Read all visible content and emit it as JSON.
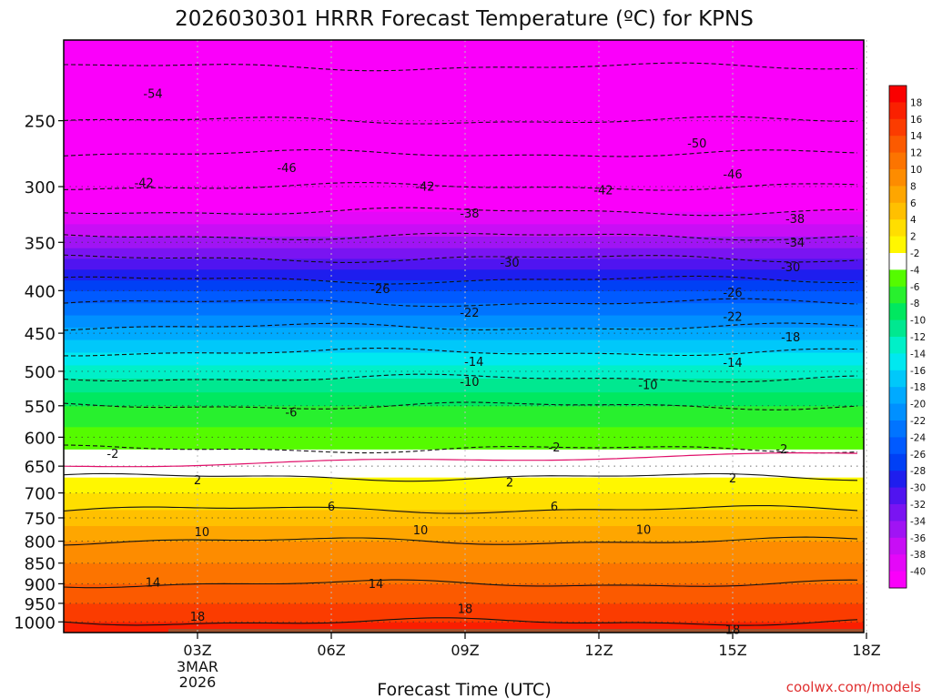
{
  "chart_data": {
    "type": "heatmap",
    "title": "2026030301 HRRR Forecast Temperature (ºC) for KPNS",
    "xlabel": "Forecast Time (UTC)",
    "ylabel": "",
    "credit": "coolwx.com/models",
    "x_range_hours": [
      0,
      18
    ],
    "x_ticks": [
      {
        "hour": 3,
        "label": "03Z",
        "date_lines": [
          "3MAR",
          "2026"
        ]
      },
      {
        "hour": 6,
        "label": "06Z"
      },
      {
        "hour": 9,
        "label": "09Z"
      },
      {
        "hour": 12,
        "label": "12Z"
      },
      {
        "hour": 15,
        "label": "15Z"
      },
      {
        "hour": 18,
        "label": "18Z"
      }
    ],
    "y_axis": {
      "scale": "log-pressure",
      "range_hpa": [
        1030,
        200
      ],
      "ticks": [
        250,
        300,
        350,
        400,
        450,
        500,
        550,
        600,
        650,
        700,
        750,
        800,
        850,
        900,
        950,
        1000
      ]
    },
    "grid": true,
    "temperature_profile": [
      {
        "p": 1030,
        "t": 19
      },
      {
        "p": 1020,
        "t": 19
      },
      {
        "p": 1000,
        "t": 18
      },
      {
        "p": 950,
        "t": 16
      },
      {
        "p": 900,
        "t": 14
      },
      {
        "p": 850,
        "t": 12
      },
      {
        "p": 800,
        "t": 10
      },
      {
        "p": 750,
        "t": 7
      },
      {
        "p": 700,
        "t": 4
      },
      {
        "p": 670,
        "t": 2
      },
      {
        "p": 650,
        "t": 0
      },
      {
        "p": 620,
        "t": -2
      },
      {
        "p": 600,
        "t": -3
      },
      {
        "p": 550,
        "t": -6
      },
      {
        "p": 500,
        "t": -11
      },
      {
        "p": 450,
        "t": -17
      },
      {
        "p": 400,
        "t": -24
      },
      {
        "p": 350,
        "t": -33
      },
      {
        "p": 300,
        "t": -42
      },
      {
        "p": 250,
        "t": -50
      },
      {
        "p": 200,
        "t": -56
      }
    ],
    "contour_labels": [
      {
        "text": "-54",
        "hour": 2.0,
        "p": 232
      },
      {
        "text": "-50",
        "hour": 14.2,
        "p": 266
      },
      {
        "text": "-46",
        "hour": 5.0,
        "p": 285
      },
      {
        "text": "-46",
        "hour": 15.0,
        "p": 290
      },
      {
        "text": "-42",
        "hour": 1.8,
        "p": 297
      },
      {
        "text": "-42",
        "hour": 8.1,
        "p": 300
      },
      {
        "text": "-42",
        "hour": 12.1,
        "p": 303
      },
      {
        "text": "-38",
        "hour": 9.1,
        "p": 323
      },
      {
        "text": "-38",
        "hour": 16.4,
        "p": 328
      },
      {
        "text": "-34",
        "hour": 16.4,
        "p": 350
      },
      {
        "text": "-30",
        "hour": 10.0,
        "p": 370
      },
      {
        "text": "-30",
        "hour": 16.3,
        "p": 375
      },
      {
        "text": "-26",
        "hour": 7.1,
        "p": 398
      },
      {
        "text": "-26",
        "hour": 15.0,
        "p": 402
      },
      {
        "text": "-22",
        "hour": 9.1,
        "p": 425
      },
      {
        "text": "-22",
        "hour": 15.0,
        "p": 430
      },
      {
        "text": "-18",
        "hour": 16.3,
        "p": 455
      },
      {
        "text": "-14",
        "hour": 9.2,
        "p": 487
      },
      {
        "text": "-14",
        "hour": 15.0,
        "p": 488
      },
      {
        "text": "-10",
        "hour": 9.1,
        "p": 515
      },
      {
        "text": "-10",
        "hour": 13.1,
        "p": 519
      },
      {
        "text": "-6",
        "hour": 5.1,
        "p": 560
      },
      {
        "text": "-2",
        "hour": 1.1,
        "p": 628
      },
      {
        "text": "-2",
        "hour": 11.0,
        "p": 617
      },
      {
        "text": "-2",
        "hour": 16.1,
        "p": 620
      },
      {
        "text": "2",
        "hour": 3.0,
        "p": 676
      },
      {
        "text": "2",
        "hour": 10.0,
        "p": 680
      },
      {
        "text": "2",
        "hour": 15.0,
        "p": 672
      },
      {
        "text": "6",
        "hour": 6.0,
        "p": 727
      },
      {
        "text": "6",
        "hour": 11.0,
        "p": 727
      },
      {
        "text": "10",
        "hour": 3.1,
        "p": 780
      },
      {
        "text": "10",
        "hour": 8.0,
        "p": 776
      },
      {
        "text": "10",
        "hour": 13.0,
        "p": 775
      },
      {
        "text": "14",
        "hour": 2.0,
        "p": 897
      },
      {
        "text": "14",
        "hour": 7.0,
        "p": 900
      },
      {
        "text": "18",
        "hour": 3.0,
        "p": 985
      },
      {
        "text": "18",
        "hour": 9.0,
        "p": 965
      },
      {
        "text": "18",
        "hour": 15.0,
        "p": 1022
      }
    ],
    "colorbar": {
      "labels": [
        "18",
        "16",
        "14",
        "12",
        "10",
        "8",
        "6",
        "4",
        "2",
        "-2",
        "-4",
        "-6",
        "-8",
        "-10",
        "-12",
        "-14",
        "-16",
        "-18",
        "-20",
        "-22",
        "-24",
        "-26",
        "-28",
        "-30",
        "-32",
        "-34",
        "-36",
        "-38",
        "-40"
      ],
      "colors": [
        "#fa0000",
        "#fa2000",
        "#fb3c00",
        "#fb5a00",
        "#fc7400",
        "#fd8c00",
        "#fea600",
        "#ffc000",
        "#ffde00",
        "#fff700",
        "#ffffff",
        "#55fb00",
        "#28f02e",
        "#00e860",
        "#00e890",
        "#00f0c8",
        "#00e8f0",
        "#00c8fa",
        "#00aaff",
        "#0090ff",
        "#0074ff",
        "#005aff",
        "#0040f5",
        "#1e1eee",
        "#5014f0",
        "#7a14f2",
        "#a014f4",
        "#c80ef5",
        "#e408f8",
        "#fa00fa"
      ]
    },
    "fill_levels": [
      {
        "t_min": 18,
        "color": "#fa1e00"
      },
      {
        "t_min": 16,
        "color": "#fb3c00"
      },
      {
        "t_min": 14,
        "color": "#fb5a00"
      },
      {
        "t_min": 12,
        "color": "#fc7400"
      },
      {
        "t_min": 10,
        "color": "#fd8c00"
      },
      {
        "t_min": 8,
        "color": "#fea600"
      },
      {
        "t_min": 6,
        "color": "#ffc000"
      },
      {
        "t_min": 4,
        "color": "#ffde00"
      },
      {
        "t_min": 2,
        "color": "#fff700"
      },
      {
        "t_min": -2,
        "color": "#ffffff"
      },
      {
        "t_min": -4,
        "color": "#55fb00"
      },
      {
        "t_min": -6,
        "color": "#28f02e"
      },
      {
        "t_min": -8,
        "color": "#00e860"
      },
      {
        "t_min": -10,
        "color": "#00e890"
      },
      {
        "t_min": -12,
        "color": "#00f0c8"
      },
      {
        "t_min": -14,
        "color": "#00e8f0"
      },
      {
        "t_min": -16,
        "color": "#00c8fa"
      },
      {
        "t_min": -18,
        "color": "#00aaff"
      },
      {
        "t_min": -20,
        "color": "#0090ff"
      },
      {
        "t_min": -22,
        "color": "#0074ff"
      },
      {
        "t_min": -24,
        "color": "#005aff"
      },
      {
        "t_min": -26,
        "color": "#0040f5"
      },
      {
        "t_min": -28,
        "color": "#1e1eee"
      },
      {
        "t_min": -30,
        "color": "#5014f0"
      },
      {
        "t_min": -32,
        "color": "#7a14f2"
      },
      {
        "t_min": -34,
        "color": "#a014f4"
      },
      {
        "t_min": -36,
        "color": "#c80ef5"
      },
      {
        "t_min": -38,
        "color": "#e408f8"
      },
      {
        "t_min": -100,
        "color": "#fa00fa"
      }
    ],
    "surface_band_color": "#a0522d"
  }
}
